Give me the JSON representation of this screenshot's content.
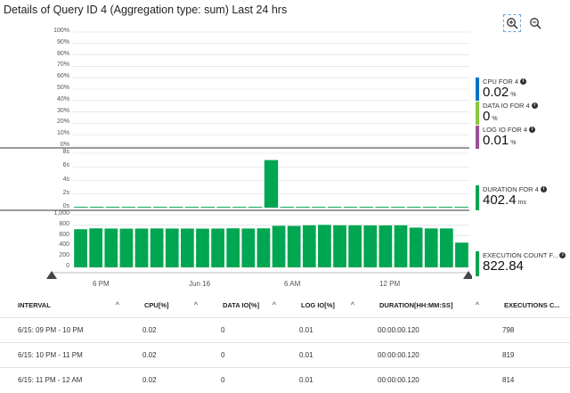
{
  "title": "Details of Query ID 4 (Aggregation type: sum) Last 24 hrs",
  "toolbar": {
    "zoom_in_icon": "zoom-in-icon",
    "zoom_out_icon": "zoom-out-icon"
  },
  "colors": {
    "cpu": "#0072c6",
    "data_io": "#8cc63f",
    "log_io": "#9b4f96",
    "bars": "#00a651",
    "grid": "#d9d9d9"
  },
  "chart_data": [
    {
      "type": "line",
      "yticks": [
        "100%",
        "90%",
        "80%",
        "70%",
        "60%",
        "50%",
        "40%",
        "30%",
        "20%",
        "10%",
        "0%"
      ],
      "ylim": [
        0,
        100
      ],
      "series": []
    },
    {
      "type": "bar",
      "yticks": [
        "8s",
        "6s",
        "4s",
        "2s",
        "0s"
      ],
      "ylim": [
        0,
        8
      ],
      "values": [
        0.12,
        0.12,
        0.12,
        0.12,
        0.12,
        0.12,
        0.12,
        0.12,
        0.12,
        0.12,
        0.12,
        0.12,
        7.0,
        0.12,
        0.12,
        0.12,
        0.12,
        0.12,
        0.12,
        0.12,
        0.12,
        0.12,
        0.12,
        0.12,
        0.12
      ]
    },
    {
      "type": "bar",
      "yticks": [
        "1,000",
        "800",
        "600",
        "400",
        "200",
        "0"
      ],
      "ylim": [
        0,
        1000
      ],
      "values": [
        725,
        742,
        738,
        736,
        738,
        740,
        738,
        738,
        736,
        738,
        742,
        738,
        742,
        790,
        788,
        800,
        808,
        800,
        800,
        798,
        798,
        800,
        755,
        740,
        740,
        470
      ],
      "xticks": [
        "6 PM",
        "Jun 16",
        "6 AM",
        "12 PM"
      ]
    }
  ],
  "metrics": [
    {
      "name": "CPU FOR 4",
      "value": "0.02",
      "unit": "%"
    },
    {
      "name": "DATA IO FOR 4",
      "value": "0",
      "unit": "%"
    },
    {
      "name": "LOG IO FOR 4",
      "value": "0.01",
      "unit": "%"
    },
    {
      "name": "DURATION FOR 4",
      "value": "402.4",
      "unit": "ms"
    },
    {
      "name": "EXECUTION COUNT F...",
      "value": "822.84",
      "unit": ""
    }
  ],
  "table": {
    "headers": [
      "INTERVAL",
      "CPU[%]",
      "DATA IO[%]",
      "LOG IO[%]",
      "DURATION[HH:MM:SS]",
      "EXECUTIONS C..."
    ],
    "rows": [
      [
        "6/15: 09 PM - 10 PM",
        "0.02",
        "0",
        "0.01",
        "00:00:00.120",
        "798"
      ],
      [
        "6/15: 10 PM - 11 PM",
        "0.02",
        "0",
        "0.01",
        "00:00:00.120",
        "819"
      ],
      [
        "6/15: 11 PM - 12 AM",
        "0.02",
        "0",
        "0.01",
        "00:00:00.120",
        "814"
      ]
    ]
  }
}
